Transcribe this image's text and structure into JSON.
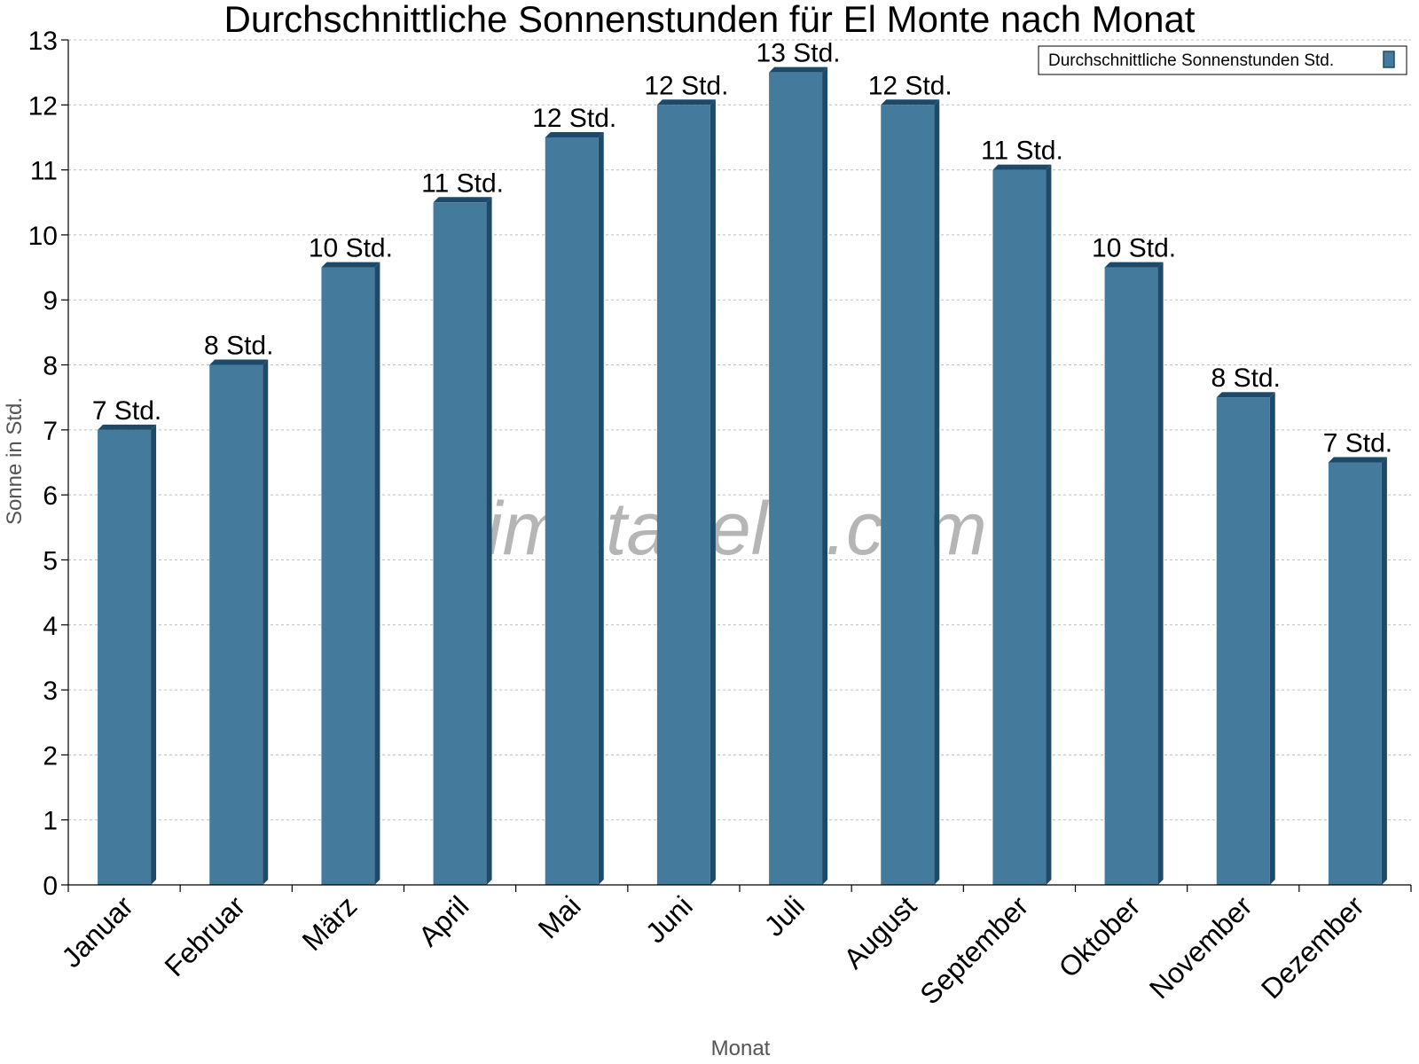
{
  "chart_data": {
    "type": "bar",
    "title": "Durchschnittliche Sonnenstunden für El Monte nach Monat",
    "xlabel": "Monat",
    "ylabel": "Sonne in Std.",
    "ylim": [
      0,
      13
    ],
    "yticks": [
      0,
      1,
      2,
      3,
      4,
      5,
      6,
      7,
      8,
      9,
      10,
      11,
      12,
      13
    ],
    "grid": true,
    "legend_position": "top-right",
    "watermark": "klimatabelle.com",
    "categories": [
      "Januar",
      "Februar",
      "März",
      "April",
      "Mai",
      "Juni",
      "Juli",
      "August",
      "September",
      "Oktober",
      "November",
      "Dezember"
    ],
    "series": [
      {
        "name": "Durchschnittliche Sonnenstunden Std.",
        "color": "#447b9d",
        "values": [
          7,
          8,
          9.5,
          10.5,
          11.5,
          12,
          12.5,
          12,
          11,
          9.5,
          7.5,
          6.5
        ],
        "labels": [
          "7 Std.",
          "8 Std.",
          "10 Std.",
          "11 Std.",
          "12 Std.",
          "12 Std.",
          "13 Std.",
          "12 Std.",
          "11 Std.",
          "10 Std.",
          "8 Std.",
          "7 Std."
        ]
      }
    ]
  }
}
